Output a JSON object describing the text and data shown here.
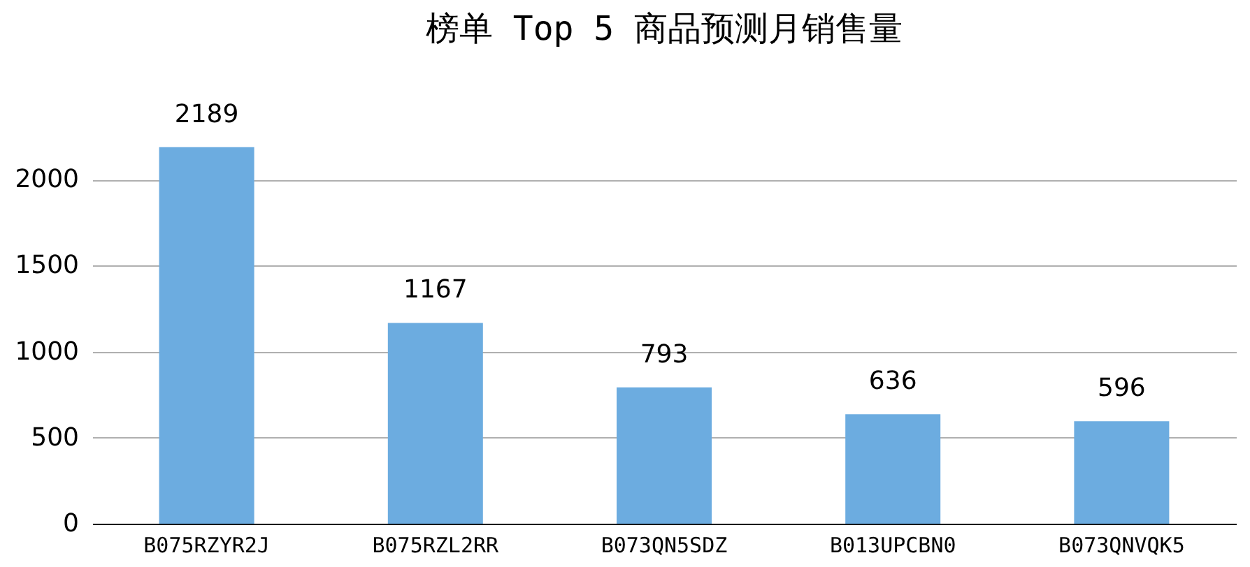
{
  "chart_data": {
    "type": "bar",
    "title": "榜单 Top 5 商品预测月销售量",
    "categories": [
      "B075RZYR2J",
      "B075RZL2RR",
      "B073QN5SDZ",
      "B013UPCBN0",
      "B073QNVQK5"
    ],
    "values": [
      2189,
      1167,
      793,
      636,
      596
    ],
    "color": "#6cace0",
    "ylim": [
      0,
      2200
    ],
    "yticks": [
      0,
      500,
      1000,
      1500,
      2000
    ],
    "grid": "y",
    "data_labels": true
  }
}
